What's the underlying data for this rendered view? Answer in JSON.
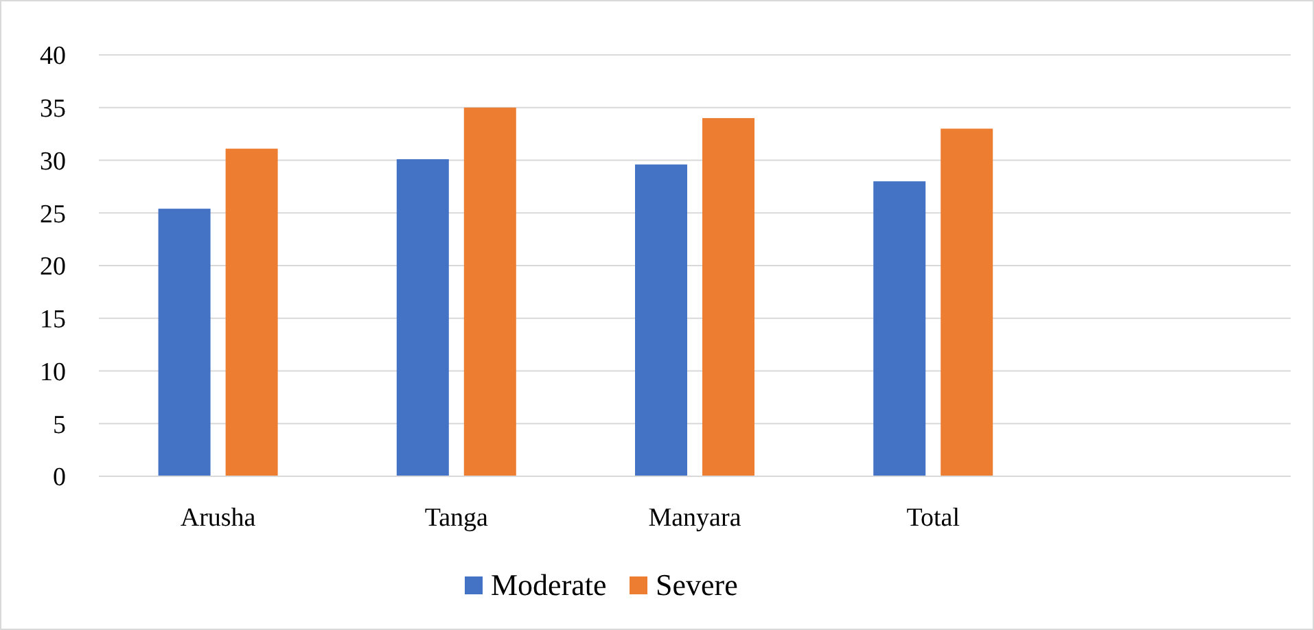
{
  "chart_data": {
    "type": "bar",
    "categories": [
      "Arusha",
      "Tanga",
      "Manyara",
      "Total",
      null
    ],
    "series": [
      {
        "name": "Moderate",
        "color": "#4472c4",
        "values": [
          25.4,
          30.1,
          29.6,
          28.0,
          null
        ]
      },
      {
        "name": "Severe",
        "color": "#ed7d31",
        "values": [
          31.1,
          35.0,
          34.0,
          33.0,
          null
        ]
      }
    ],
    "ylim": [
      0,
      40
    ],
    "yticks": [
      0,
      5,
      10,
      15,
      20,
      25,
      30,
      35,
      40
    ],
    "grid": "y",
    "legend": "bottom"
  }
}
